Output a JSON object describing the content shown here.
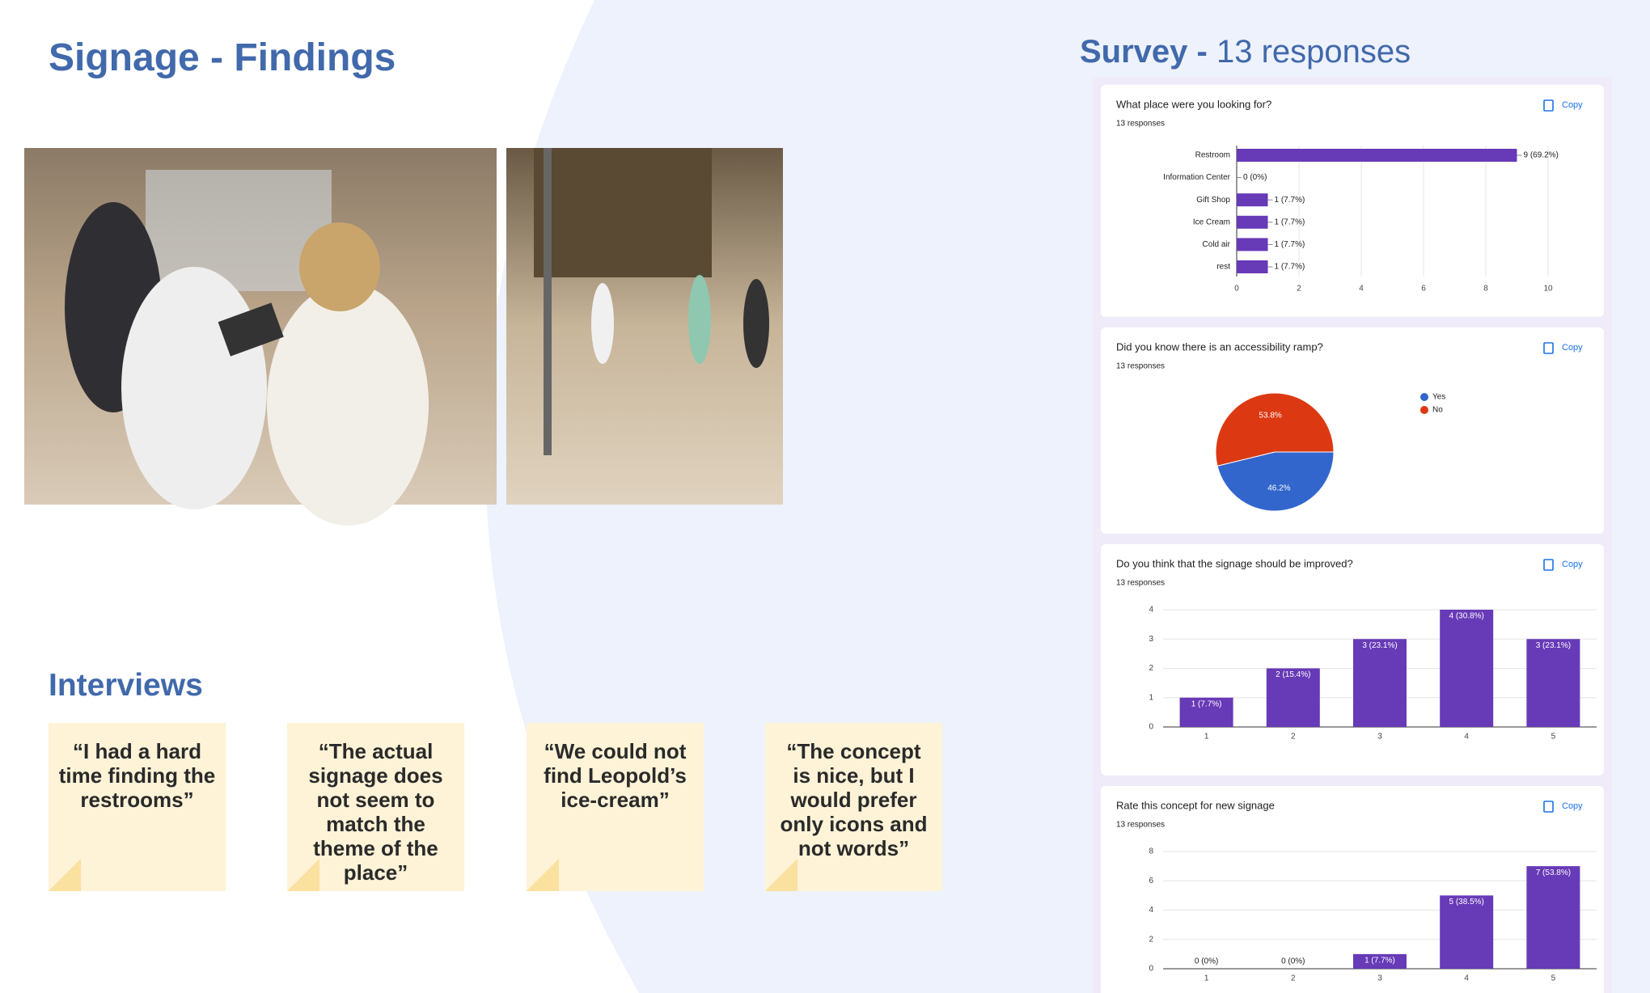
{
  "title": "Signage - Findings",
  "survey": {
    "title": "Survey -",
    "subtitle": "13 responses"
  },
  "interviews": {
    "title": "Interviews",
    "quotes": [
      "“I had a hard time finding the restrooms”",
      "“The actual signage does not seem to match the theme of the place”",
      "“We could not find Leopold’s ice-cream”",
      "“The concept is nice, but I would prefer only icons and not words”"
    ]
  },
  "chart_data": [
    {
      "type": "hbar",
      "title": "What place were you looking for?",
      "subtitle": "13 responses",
      "copy_label": "Copy",
      "categories": [
        "Restroom",
        "Information Center",
        "Gift Shop",
        "Ice Cream",
        "Cold air",
        "rest"
      ],
      "values": [
        9,
        0,
        1,
        1,
        1,
        1
      ],
      "value_labels": [
        "9 (69.2%)",
        "0 (0%)",
        "1 (7.7%)",
        "1 (7.7%)",
        "1 (7.7%)",
        "1 (7.7%)"
      ],
      "xlim": [
        0,
        10
      ],
      "xticks": [
        0,
        2,
        4,
        6,
        8,
        10
      ],
      "grid": true,
      "color": "#673ab7"
    },
    {
      "type": "pie",
      "title": "Did you know there is an accessibility ramp?",
      "subtitle": "13 responses",
      "copy_label": "Copy",
      "categories": [
        "Yes",
        "No"
      ],
      "values": [
        46.2,
        53.8
      ],
      "value_labels": [
        "46.2%",
        "53.8%"
      ],
      "colors": [
        "#3366cc",
        "#dc3912"
      ],
      "legend": "right"
    },
    {
      "type": "bar",
      "title": "Do you think that the signage should be improved?",
      "subtitle": "13 responses",
      "copy_label": "Copy",
      "categories": [
        "1",
        "2",
        "3",
        "4",
        "5"
      ],
      "values": [
        1,
        2,
        3,
        4,
        3
      ],
      "value_labels": [
        "1 (7.7%)",
        "2 (15.4%)",
        "3 (23.1%)",
        "4 (30.8%)",
        "3 (23.1%)"
      ],
      "ylim": [
        0,
        4
      ],
      "yticks": [
        0,
        1,
        2,
        3,
        4
      ],
      "grid": true,
      "color": "#673ab7"
    },
    {
      "type": "bar",
      "title": "Rate this concept for new signage",
      "subtitle": "13 responses",
      "copy_label": "Copy",
      "categories": [
        "1",
        "2",
        "3",
        "4",
        "5"
      ],
      "values": [
        0,
        0,
        1,
        5,
        7
      ],
      "value_labels": [
        "0 (0%)",
        "0 (0%)",
        "1 (7.7%)",
        "5 (38.5%)",
        "7 (53.8%)"
      ],
      "ylim": [
        0,
        8
      ],
      "yticks": [
        0,
        2,
        4,
        6,
        8
      ],
      "grid": true,
      "color": "#673ab7"
    }
  ]
}
